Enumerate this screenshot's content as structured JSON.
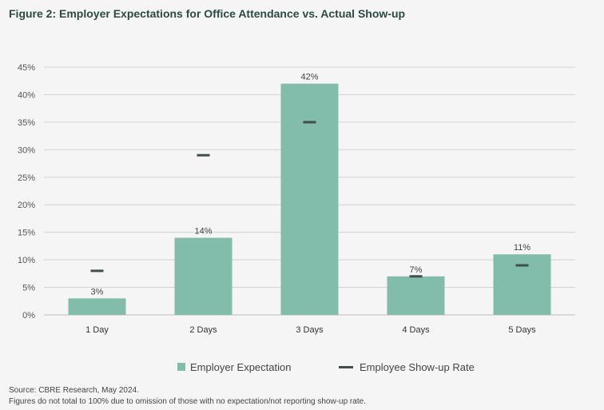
{
  "title": "Figure 2: Employer Expectations for Office Attendance vs. Actual Show-up",
  "colors": {
    "bar": "#82bcab",
    "marker": "#3f4f4b",
    "grid": "#d2d2d2",
    "axis_text": "#555555",
    "background": "#f5f5f5"
  },
  "chart_data": {
    "type": "bar",
    "categories": [
      "1 Day",
      "2 Days",
      "3 Days",
      "4 Days",
      "5 Days"
    ],
    "series": [
      {
        "name": "Employer Expectation",
        "kind": "bar",
        "values": [
          3,
          14,
          42,
          7,
          11
        ],
        "data_labels": [
          "3%",
          "14%",
          "42%",
          "7%",
          "11%"
        ]
      },
      {
        "name": "Employee Show-up Rate",
        "kind": "marker",
        "values": [
          8,
          29,
          35,
          7,
          9
        ]
      }
    ],
    "ylim": [
      0,
      45
    ],
    "yticks": [
      0,
      5,
      10,
      15,
      20,
      25,
      30,
      35,
      40,
      45
    ],
    "ytick_labels": [
      "0%",
      "5%",
      "10%",
      "15%",
      "20%",
      "25%",
      "30%",
      "35%",
      "40%",
      "45%"
    ],
    "xlabel": "",
    "ylabel": "",
    "grid": true,
    "legend_position": "bottom"
  },
  "legend": {
    "bar_label": "Employer Expectation",
    "marker_label": "Employee Show-up Rate"
  },
  "footer": {
    "source": "Source: CBRE Research, May 2024.",
    "note": "Figures do not total to 100% due to omission of those with no expectation/not reporting show-up rate."
  }
}
